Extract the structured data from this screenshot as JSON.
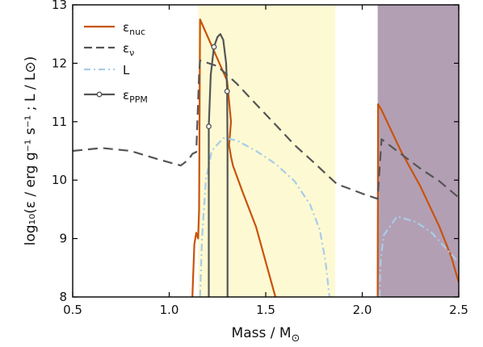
{
  "chart_data": {
    "type": "line",
    "xlabel_main": "Mass / M",
    "xlabel_sub": "⊙",
    "ylabel": "log₁₀(ε / erg g⁻¹ s⁻¹ ; L / L⊙)",
    "xlim": [
      0.5,
      2.5
    ],
    "ylim": [
      8,
      13
    ],
    "xticks": [
      "0.5",
      "1.0",
      "1.5",
      "2.0",
      "2.5"
    ],
    "yticks": [
      "8",
      "9",
      "10",
      "11",
      "12",
      "13"
    ],
    "grid": false,
    "legend_position": "top-left",
    "shaded_regions": [
      {
        "x": [
          1.15,
          1.86
        ],
        "color": "#fdf9d3"
      },
      {
        "x": [
          2.08,
          2.5
        ],
        "color": "#b39fb4"
      }
    ],
    "series": [
      {
        "name": "ε",
        "name_sub": "nuc",
        "color": "#c8530c",
        "style": "solid",
        "segments": [
          [
            [
              1.12,
              8.0
            ],
            [
              1.13,
              8.9
            ],
            [
              1.14,
              9.1
            ],
            [
              1.15,
              9.0
            ],
            [
              1.155,
              9.5
            ],
            [
              1.16,
              12.75
            ],
            [
              1.18,
              12.6
            ],
            [
              1.22,
              12.3
            ],
            [
              1.3,
              11.7
            ],
            [
              1.32,
              11.0
            ],
            [
              1.31,
              10.6
            ],
            [
              1.32,
              10.4
            ],
            [
              1.33,
              10.25
            ],
            [
              1.38,
              9.8
            ],
            [
              1.45,
              9.2
            ],
            [
              1.5,
              8.6
            ],
            [
              1.55,
              8.0
            ]
          ],
          [
            [
              2.08,
              8.0
            ],
            [
              2.082,
              11.3
            ],
            [
              2.1,
              11.2
            ],
            [
              2.2,
              10.5
            ],
            [
              2.3,
              9.9
            ],
            [
              2.4,
              9.2
            ],
            [
              2.46,
              8.7
            ],
            [
              2.5,
              8.25
            ]
          ]
        ]
      },
      {
        "name": "ε",
        "name_sub": "ν",
        "color": "#555555",
        "style": "dashed",
        "segments": [
          [
            [
              0.5,
              10.5
            ],
            [
              0.65,
              10.55
            ],
            [
              0.8,
              10.5
            ],
            [
              0.95,
              10.35
            ],
            [
              1.06,
              10.25
            ],
            [
              1.08,
              10.3
            ],
            [
              1.1,
              10.35
            ],
            [
              1.12,
              10.45
            ],
            [
              1.14,
              10.48
            ],
            [
              1.155,
              11.8
            ],
            [
              1.16,
              12.05
            ],
            [
              1.25,
              11.95
            ],
            [
              1.35,
              11.65
            ],
            [
              1.45,
              11.3
            ],
            [
              1.55,
              10.95
            ],
            [
              1.65,
              10.6
            ],
            [
              1.75,
              10.3
            ],
            [
              1.83,
              10.05
            ],
            [
              1.87,
              9.93
            ],
            [
              1.92,
              9.87
            ],
            [
              2.0,
              9.77
            ],
            [
              2.08,
              9.68
            ],
            [
              2.085,
              9.95
            ],
            [
              2.1,
              10.7
            ],
            [
              2.2,
              10.45
            ],
            [
              2.3,
              10.2
            ],
            [
              2.4,
              9.98
            ],
            [
              2.5,
              9.7
            ]
          ]
        ]
      },
      {
        "name": "L",
        "name_sub": "",
        "color": "#a7cde8",
        "style": "dashdot",
        "segments": [
          [
            [
              1.16,
              8.0
            ],
            [
              1.17,
              9.0
            ],
            [
              1.19,
              10.0
            ],
            [
              1.22,
              10.5
            ],
            [
              1.28,
              10.72
            ],
            [
              1.35,
              10.68
            ],
            [
              1.45,
              10.5
            ],
            [
              1.55,
              10.28
            ],
            [
              1.65,
              9.98
            ],
            [
              1.73,
              9.58
            ],
            [
              1.78,
              9.15
            ],
            [
              1.81,
              8.6
            ],
            [
              1.83,
              8.0
            ]
          ],
          [
            [
              2.09,
              8.0
            ],
            [
              2.095,
              8.6
            ],
            [
              2.11,
              9.05
            ],
            [
              2.18,
              9.38
            ],
            [
              2.28,
              9.28
            ],
            [
              2.36,
              9.1
            ],
            [
              2.42,
              8.88
            ],
            [
              2.47,
              8.7
            ],
            [
              2.5,
              8.58
            ]
          ]
        ]
      },
      {
        "name": "ε",
        "name_sub": "PPM",
        "color": "#555555",
        "style": "solid-markers",
        "segments": [
          [
            [
              1.205,
              8.0
            ],
            [
              1.205,
              10.92
            ],
            [
              1.215,
              11.8
            ],
            [
              1.232,
              12.28
            ],
            [
              1.25,
              12.45
            ],
            [
              1.265,
              12.5
            ],
            [
              1.28,
              12.4
            ],
            [
              1.295,
              12.0
            ],
            [
              1.3,
              11.52
            ],
            [
              1.302,
              10.5
            ],
            [
              1.302,
              8.0
            ]
          ]
        ],
        "markers": [
          [
            1.205,
            10.92
          ],
          [
            1.232,
            12.28
          ],
          [
            1.3,
            11.52
          ]
        ]
      }
    ]
  }
}
